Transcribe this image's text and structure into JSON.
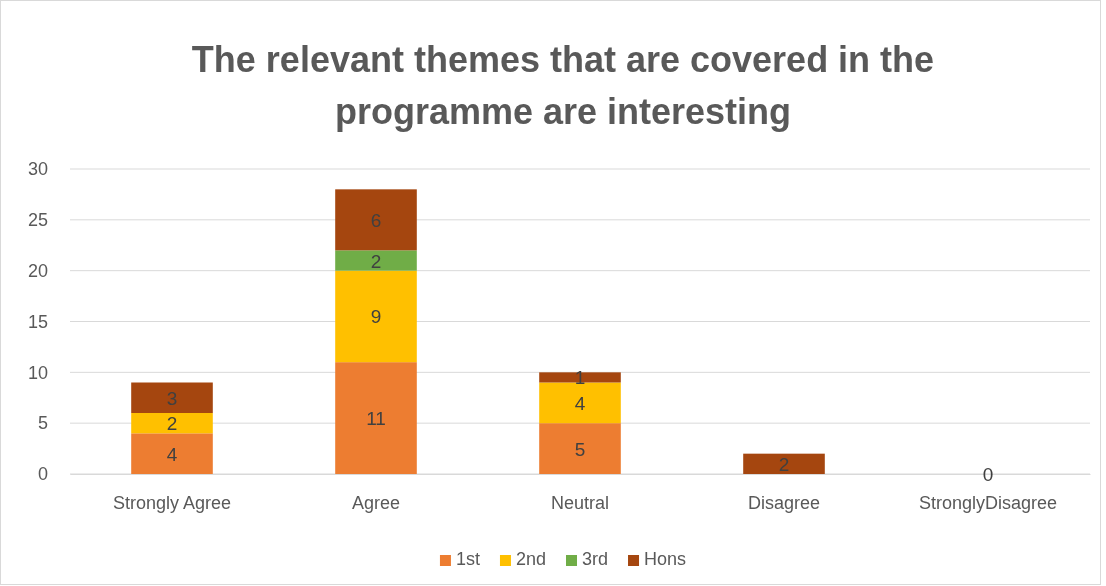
{
  "chart_data": {
    "type": "bar",
    "title": "The relevant themes that are covered in the programme are interesting",
    "categories": [
      "Strongly Agree",
      "Agree",
      "Neutral",
      "Disagree",
      "StronglyDisagree"
    ],
    "stacked": true,
    "series": [
      {
        "name": "1st",
        "color": "#ed7d31",
        "values": [
          4,
          11,
          5,
          0,
          0
        ],
        "value_labels": [
          "4",
          "11",
          "5",
          null,
          null
        ]
      },
      {
        "name": "2nd",
        "color": "#ffc000",
        "values": [
          2,
          9,
          4,
          0,
          0
        ],
        "value_labels": [
          "2",
          "9",
          "4",
          null,
          null
        ]
      },
      {
        "name": "3rd",
        "color": "#70ad47",
        "values": [
          0,
          2,
          0,
          0,
          0
        ],
        "value_labels": [
          null,
          "2",
          null,
          null,
          null
        ]
      },
      {
        "name": "Hons",
        "color": "#a5460f",
        "values": [
          3,
          6,
          1,
          2,
          0
        ],
        "value_labels": [
          "3",
          "6",
          "1",
          "2",
          "0"
        ]
      }
    ],
    "ylim": [
      0,
      30
    ],
    "yticks": [
      0,
      5,
      10,
      15,
      20,
      25,
      30
    ],
    "grid": "y",
    "legend": "bottom"
  }
}
